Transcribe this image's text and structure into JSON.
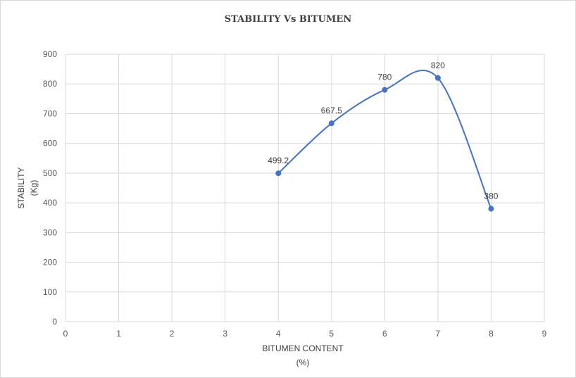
{
  "chart_data": {
    "type": "line",
    "title": "STABILITY Vs BITUMEN",
    "xlabel_lines": [
      "BITUMEN CONTENT",
      "(%)"
    ],
    "ylabel_lines": [
      "STABILITY",
      "(Kg)"
    ],
    "xlim": [
      0,
      9
    ],
    "ylim": [
      0,
      900
    ],
    "x_ticks": [
      0,
      1,
      2,
      3,
      4,
      5,
      6,
      7,
      8,
      9
    ],
    "y_ticks": [
      0,
      100,
      200,
      300,
      400,
      500,
      600,
      700,
      800,
      900
    ],
    "grid": true,
    "smooth": true,
    "line_color": "#4472c4",
    "series": [
      {
        "x": [
          4,
          5,
          6,
          7,
          8
        ],
        "values": [
          499.2,
          667.5,
          780,
          820,
          380
        ],
        "labels": [
          "499.2",
          "667.5",
          "780",
          "820",
          "380"
        ]
      }
    ]
  }
}
